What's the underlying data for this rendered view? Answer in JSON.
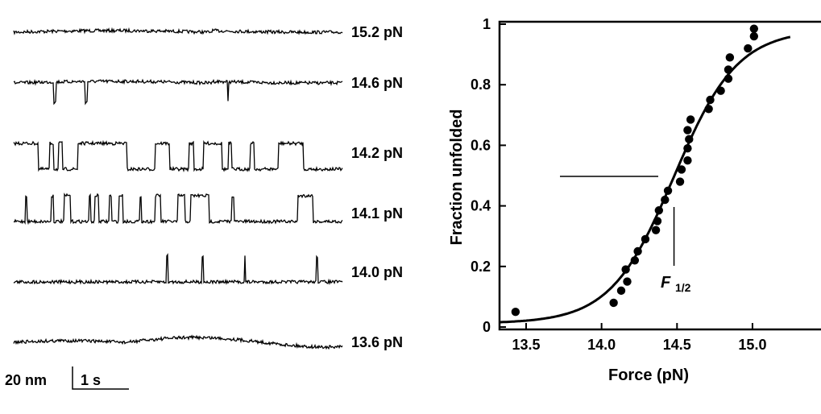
{
  "chart_data": [
    {
      "type": "line",
      "scale_bar": {
        "extension_label": "20 nm",
        "time_label": "1 s",
        "extension_nm": 20,
        "time_s": 1
      },
      "trace_duration_s": 5.83,
      "traces": [
        {
          "label": "15.2 pN",
          "force_pN": 15.2,
          "high_intervals_s": [
            [
              0,
              5.83
            ]
          ],
          "dips_s": []
        },
        {
          "label": "14.6 pN",
          "force_pN": 14.6,
          "high_intervals_s": [
            [
              0,
              5.83
            ]
          ],
          "dips_s": [
            [
              0.71,
              0.04
            ],
            [
              1.27,
              0.04
            ],
            [
              3.79,
              0.015
            ]
          ]
        },
        {
          "label": "14.2 pN",
          "force_pN": 14.2,
          "high_intervals_s": [
            [
              0.0,
              0.43
            ],
            [
              0.64,
              0.71
            ],
            [
              0.79,
              0.86
            ],
            [
              1.14,
              2.01
            ],
            [
              2.51,
              2.76
            ],
            [
              3.11,
              3.19
            ],
            [
              3.37,
              3.69
            ],
            [
              3.81,
              3.87
            ],
            [
              4.2,
              4.26
            ],
            [
              4.69,
              5.14
            ]
          ],
          "dips_s": []
        },
        {
          "label": "14.1 pN",
          "force_pN": 14.1,
          "high_intervals_s": [
            [
              0.21,
              0.23
            ],
            [
              0.66,
              0.7
            ],
            [
              0.9,
              1.01
            ],
            [
              1.34,
              1.37
            ],
            [
              1.43,
              1.5
            ],
            [
              1.69,
              1.74
            ],
            [
              1.87,
              1.94
            ],
            [
              2.23,
              2.26
            ],
            [
              2.51,
              2.6
            ],
            [
              2.91,
              3.04
            ],
            [
              3.14,
              3.46
            ],
            [
              3.87,
              3.9
            ],
            [
              5.04,
              5.3
            ]
          ],
          "dips_s": []
        },
        {
          "label": "14.0 pN",
          "force_pN": 14.0,
          "high_intervals_s": [
            [
              2.71,
              2.73
            ],
            [
              3.34,
              3.36
            ],
            [
              4.09,
              4.1
            ],
            [
              5.37,
              5.39
            ]
          ],
          "dips_s": []
        },
        {
          "label": "13.6 pN",
          "force_pN": 13.6,
          "high_intervals_s": [],
          "dips_s": []
        }
      ]
    },
    {
      "type": "scatter",
      "xlabel": "Force (pN)",
      "ylabel": "Fraction unfolded",
      "xlim": [
        13.32,
        15.45
      ],
      "ylim": [
        0,
        1
      ],
      "xticks": [
        "13.5",
        "14.0",
        "14.5",
        "15.0"
      ],
      "xtick_values": [
        13.5,
        14.0,
        14.5,
        15.0
      ],
      "yticks": [
        "0",
        "0.2",
        "0.4",
        "0.6",
        "0.8",
        "1"
      ],
      "ytick_values": [
        0,
        0.2,
        0.4,
        0.6,
        0.8,
        1
      ],
      "grid": false,
      "annotation": {
        "label": "F",
        "subscript": "1/2",
        "value_pN": 14.48
      },
      "fit": {
        "type": "sigmoid",
        "midpoint_pN": 14.48,
        "width_pN": 0.21,
        "x_range": [
          13.32,
          15.25
        ]
      },
      "points": [
        [
          13.43,
          0.05
        ],
        [
          14.08,
          0.08
        ],
        [
          14.13,
          0.12
        ],
        [
          14.17,
          0.15
        ],
        [
          14.16,
          0.19
        ],
        [
          14.22,
          0.22
        ],
        [
          14.24,
          0.25
        ],
        [
          14.29,
          0.29
        ],
        [
          14.36,
          0.32
        ],
        [
          14.37,
          0.35
        ],
        [
          14.38,
          0.385
        ],
        [
          14.42,
          0.42
        ],
        [
          14.44,
          0.45
        ],
        [
          14.52,
          0.48
        ],
        [
          14.53,
          0.52
        ],
        [
          14.57,
          0.55
        ],
        [
          14.57,
          0.59
        ],
        [
          14.58,
          0.62
        ],
        [
          14.57,
          0.65
        ],
        [
          14.59,
          0.685
        ],
        [
          14.71,
          0.72
        ],
        [
          14.72,
          0.75
        ],
        [
          14.79,
          0.78
        ],
        [
          14.84,
          0.82
        ],
        [
          14.84,
          0.85
        ],
        [
          14.85,
          0.89
        ],
        [
          14.97,
          0.92
        ],
        [
          15.01,
          0.96
        ],
        [
          15.01,
          0.985
        ]
      ]
    }
  ]
}
